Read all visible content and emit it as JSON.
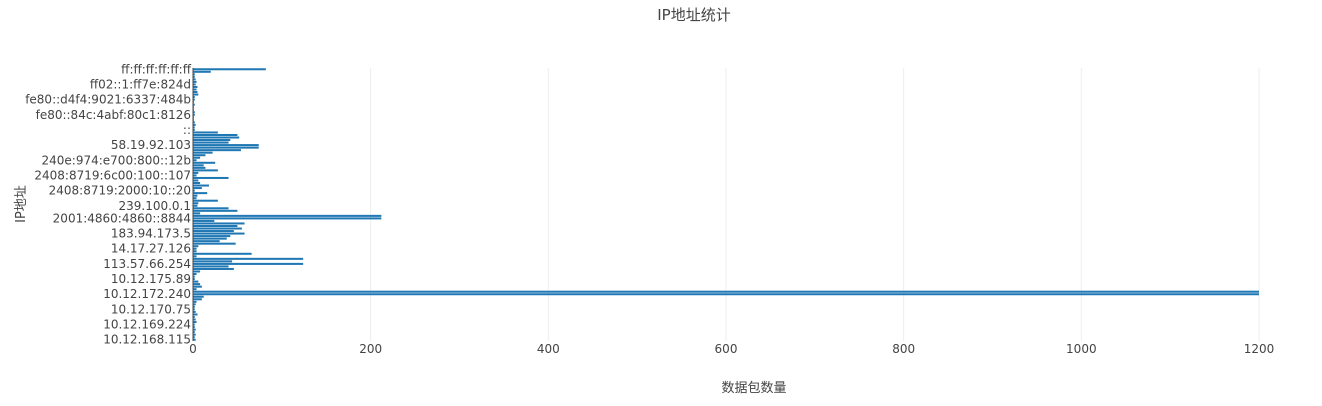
{
  "chart_data": {
    "type": "bar",
    "orientation": "horizontal",
    "title": "IP地址统计",
    "xlabel": "数据包数量",
    "ylabel": "IP地址",
    "xlim": [
      0,
      1200
    ],
    "x_ticks": [
      0,
      200,
      400,
      600,
      800,
      1000,
      1200
    ],
    "grid": "vertical",
    "legend": "none",
    "bar_color": "#1f77b4",
    "y_tick_labels": [
      "ff:ff:ff:ff:ff:ff",
      "ff02::1:ff7e:824d",
      "fe80::d4f4:9021:6337:484b",
      "fe80::84c:4abf:80c1:8126",
      "::",
      "58.19.92.103",
      "240e:974:e700:800::12b",
      "2408:8719:6c00:100::107",
      "2408:8719:2000:10::20",
      "239.100.0.1",
      "2001:4860:4860::8844",
      "183.94.173.5",
      "14.17.27.126",
      "113.57.66.254",
      "10.12.175.89",
      "10.12.172.240",
      "10.12.170.75",
      "10.12.169.224",
      "10.12.168.115"
    ],
    "categories": [
      "ff:ff:ff:ff:ff:ff",
      "ff02::1:ff7e:824d",
      "fe80::d4f4:9021:6337:484b",
      "fe80::84c:4abf:80c1:8126",
      "::",
      "58.19.92.103",
      "240e:974:e700:800::12b",
      "2408:8719:6c00:100::107",
      "2408:8719:2000:10::20",
      "239.100.0.1",
      "2001:4860:4860::8844",
      "183.94.173.5",
      "14.17.27.126",
      "113.57.66.254",
      "10.12.175.89",
      "10.12.172.240",
      "10.12.170.75",
      "10.12.169.224",
      "10.12.168.115"
    ],
    "values": [
      82,
      3,
      2,
      2,
      2,
      74,
      4,
      4,
      2,
      5,
      212,
      58,
      4,
      124,
      2,
      1200,
      2,
      2,
      3
    ],
    "unlabeled_bar_values": [
      20,
      2,
      2,
      3,
      4,
      5,
      4,
      5,
      6,
      2,
      1,
      2,
      1,
      1,
      2,
      1,
      1,
      2,
      3,
      2,
      28,
      50,
      52,
      42,
      40,
      74,
      54,
      22,
      14,
      8,
      25,
      12,
      14,
      28,
      6,
      40,
      6,
      8,
      18,
      10,
      16,
      5,
      4,
      28,
      6,
      40,
      50,
      8,
      212,
      24,
      58,
      50,
      55,
      46,
      42,
      38,
      30,
      48,
      6,
      4,
      66,
      4,
      124,
      44,
      40,
      46,
      8,
      4,
      2,
      6,
      8,
      10,
      4,
      1200,
      12,
      10,
      4,
      3,
      2,
      3,
      5,
      2,
      3,
      4,
      2,
      3,
      2,
      3,
      2
    ]
  }
}
